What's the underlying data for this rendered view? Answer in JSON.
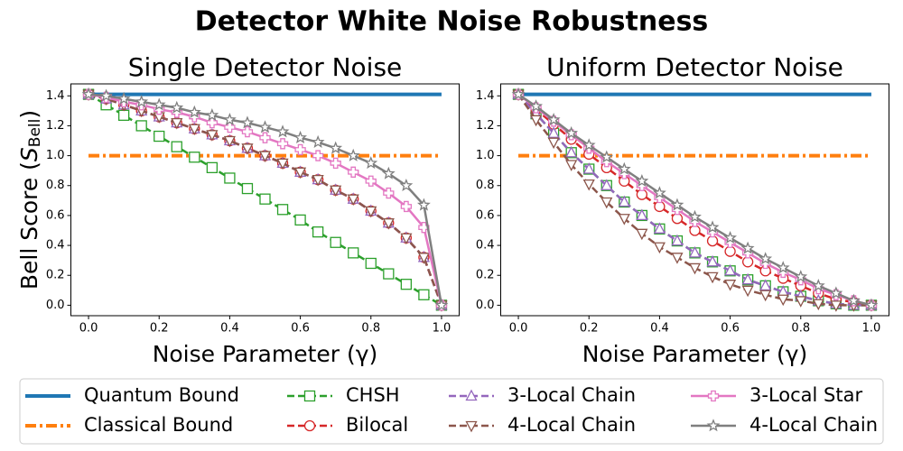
{
  "title": "Detector White Noise Robustness",
  "legend": "bottom",
  "chart_data": [
    {
      "type": "line",
      "title": "Single Detector Noise",
      "xlabel": "Noise Parameter (γ)",
      "ylabel": [
        "Bell Score (",
        "S",
        "Bell",
        ")"
      ],
      "x": [
        0,
        0.05,
        0.1,
        0.15,
        0.2,
        0.25,
        0.3,
        0.35,
        0.4,
        0.45,
        0.5,
        0.55,
        0.6,
        0.65,
        0.7,
        0.75,
        0.8,
        0.85,
        0.9,
        0.95,
        1.0
      ],
      "xlim": [
        -0.05,
        1.05
      ],
      "ylim": [
        -0.07,
        1.48
      ],
      "xticks": [
        {
          "value": 0,
          "label": "0.0"
        },
        0.2,
        0.4,
        0.6,
        0.8,
        {
          "value": 1,
          "label": "1.0"
        }
      ],
      "yticks": [
        {
          "value": 0,
          "label": "0.0"
        },
        0.2,
        0.4,
        0.6,
        0.8,
        {
          "value": 1,
          "label": "1.0"
        },
        1.2,
        1.4
      ],
      "series": [
        {
          "name": "Quantum Bound",
          "color": "#1f77b4",
          "linestyle": "solid",
          "marker": "none",
          "values": [
            1.41,
            1.41,
            1.41,
            1.41,
            1.41,
            1.41,
            1.41,
            1.41,
            1.41,
            1.41,
            1.41,
            1.41,
            1.41,
            1.41,
            1.41,
            1.41,
            1.41,
            1.41,
            1.41,
            1.41,
            1.41
          ]
        },
        {
          "name": "Classical Bound",
          "color": "#ff7f0e",
          "linestyle": "dashdot",
          "marker": "none",
          "values": [
            1,
            1,
            1,
            1,
            1,
            1,
            1,
            1,
            1,
            1,
            1,
            1,
            1,
            1,
            1,
            1,
            1,
            1,
            1,
            1,
            1
          ]
        },
        {
          "name": "CHSH",
          "color": "#2ca02c",
          "linestyle": "dashed",
          "marker": "square",
          "values": [
            1.41,
            1.34,
            1.27,
            1.2,
            1.13,
            1.06,
            0.99,
            0.92,
            0.85,
            0.78,
            0.71,
            0.64,
            0.57,
            0.49,
            0.42,
            0.35,
            0.28,
            0.21,
            0.14,
            0.07,
            0
          ]
        },
        {
          "name": "Bilocal",
          "color": "#d62728",
          "linestyle": "dashed",
          "marker": "circle",
          "values": [
            1.41,
            1.38,
            1.34,
            1.3,
            1.26,
            1.22,
            1.18,
            1.14,
            1.1,
            1.05,
            1.0,
            0.95,
            0.89,
            0.84,
            0.77,
            0.71,
            0.63,
            0.55,
            0.45,
            0.32,
            0
          ]
        },
        {
          "name": "3-Local Chain",
          "color": "#9467bd",
          "linestyle": "dashed",
          "marker": "triangle-up",
          "values": [
            1.41,
            1.38,
            1.34,
            1.3,
            1.26,
            1.22,
            1.18,
            1.14,
            1.1,
            1.05,
            1.0,
            0.95,
            0.89,
            0.84,
            0.77,
            0.71,
            0.63,
            0.55,
            0.45,
            0.32,
            0
          ]
        },
        {
          "name": "4-Local Chain",
          "color": "#8c564b",
          "linestyle": "dashed",
          "marker": "triangle-down",
          "values": [
            1.41,
            1.38,
            1.34,
            1.3,
            1.26,
            1.22,
            1.18,
            1.14,
            1.1,
            1.05,
            1.0,
            0.95,
            0.89,
            0.84,
            0.77,
            0.71,
            0.63,
            0.55,
            0.45,
            0.32,
            0
          ]
        },
        {
          "name": "3-Local Star",
          "color": "#e377c2",
          "linestyle": "solid",
          "marker": "plus",
          "values": [
            1.41,
            1.39,
            1.36,
            1.34,
            1.31,
            1.29,
            1.26,
            1.22,
            1.19,
            1.16,
            1.12,
            1.08,
            1.04,
            1.0,
            0.95,
            0.89,
            0.83,
            0.75,
            0.66,
            0.52,
            0
          ]
        },
        {
          "name": "4-Local Chain",
          "color": "#7f7f7f",
          "linestyle": "solid",
          "marker": "star",
          "values": [
            1.41,
            1.4,
            1.38,
            1.36,
            1.34,
            1.32,
            1.29,
            1.27,
            1.24,
            1.22,
            1.19,
            1.16,
            1.12,
            1.09,
            1.05,
            1.0,
            0.95,
            0.88,
            0.8,
            0.67,
            0
          ]
        }
      ]
    },
    {
      "type": "line",
      "title": "Uniform Detector Noise",
      "xlabel": "Noise Parameter (γ)",
      "x": [
        0,
        0.05,
        0.1,
        0.15,
        0.2,
        0.25,
        0.3,
        0.35,
        0.4,
        0.45,
        0.5,
        0.55,
        0.6,
        0.65,
        0.7,
        0.75,
        0.8,
        0.85,
        0.9,
        0.95,
        1.0
      ],
      "xlim": [
        -0.05,
        1.05
      ],
      "ylim": [
        -0.07,
        1.48
      ],
      "xticks": [
        {
          "value": 0,
          "label": "0.0"
        },
        0.2,
        0.4,
        0.6,
        0.8,
        {
          "value": 1,
          "label": "1.0"
        }
      ],
      "yticks": [
        {
          "value": 0,
          "label": "0.0"
        },
        0.2,
        0.4,
        0.6,
        0.8,
        {
          "value": 1,
          "label": "1.0"
        },
        1.2,
        1.4
      ],
      "series": [
        {
          "name": "Quantum Bound",
          "color": "#1f77b4",
          "linestyle": "solid",
          "marker": "none",
          "values": [
            1.41,
            1.41,
            1.41,
            1.41,
            1.41,
            1.41,
            1.41,
            1.41,
            1.41,
            1.41,
            1.41,
            1.41,
            1.41,
            1.41,
            1.41,
            1.41,
            1.41,
            1.41,
            1.41,
            1.41,
            1.41
          ]
        },
        {
          "name": "Classical Bound",
          "color": "#ff7f0e",
          "linestyle": "dashdot",
          "marker": "none",
          "values": [
            1,
            1,
            1,
            1,
            1,
            1,
            1,
            1,
            1,
            1,
            1,
            1,
            1,
            1,
            1,
            1,
            1,
            1,
            1,
            1,
            1
          ]
        },
        {
          "name": "CHSH",
          "color": "#2ca02c",
          "linestyle": "dashed",
          "marker": "square",
          "values": [
            1.41,
            1.28,
            1.15,
            1.02,
            0.91,
            0.8,
            0.69,
            0.6,
            0.51,
            0.43,
            0.35,
            0.29,
            0.23,
            0.17,
            0.13,
            0.09,
            0.06,
            0.03,
            0.01,
            0.0,
            0
          ]
        },
        {
          "name": "Bilocal",
          "color": "#d62728",
          "linestyle": "dashed",
          "marker": "circle",
          "values": [
            1.41,
            1.31,
            1.21,
            1.11,
            1.01,
            0.92,
            0.83,
            0.74,
            0.66,
            0.58,
            0.5,
            0.43,
            0.36,
            0.29,
            0.23,
            0.18,
            0.13,
            0.08,
            0.04,
            0.02,
            0
          ]
        },
        {
          "name": "3-Local Chain",
          "color": "#9467bd",
          "linestyle": "dashed",
          "marker": "triangle-up",
          "values": [
            1.41,
            1.28,
            1.15,
            1.02,
            0.91,
            0.8,
            0.69,
            0.6,
            0.51,
            0.43,
            0.35,
            0.29,
            0.23,
            0.17,
            0.13,
            0.09,
            0.06,
            0.03,
            0.01,
            0.0,
            0
          ]
        },
        {
          "name": "4-Local Chain",
          "color": "#8c564b",
          "linestyle": "dashed",
          "marker": "triangle-down",
          "values": [
            1.41,
            1.24,
            1.09,
            0.94,
            0.81,
            0.69,
            0.58,
            0.48,
            0.39,
            0.32,
            0.25,
            0.19,
            0.14,
            0.1,
            0.07,
            0.04,
            0.03,
            0.01,
            0.0,
            0.0,
            0
          ]
        },
        {
          "name": "3-Local Star",
          "color": "#e377c2",
          "linestyle": "solid",
          "marker": "plus",
          "values": [
            1.41,
            1.32,
            1.23,
            1.14,
            1.05,
            0.96,
            0.88,
            0.8,
            0.72,
            0.64,
            0.56,
            0.49,
            0.42,
            0.35,
            0.28,
            0.22,
            0.17,
            0.11,
            0.07,
            0.03,
            0
          ]
        },
        {
          "name": "4-Local Chain",
          "color": "#7f7f7f",
          "linestyle": "solid",
          "marker": "star",
          "values": [
            1.41,
            1.33,
            1.24,
            1.15,
            1.07,
            0.99,
            0.91,
            0.83,
            0.75,
            0.67,
            0.59,
            0.52,
            0.45,
            0.38,
            0.31,
            0.25,
            0.19,
            0.13,
            0.08,
            0.03,
            0
          ]
        }
      ]
    }
  ]
}
